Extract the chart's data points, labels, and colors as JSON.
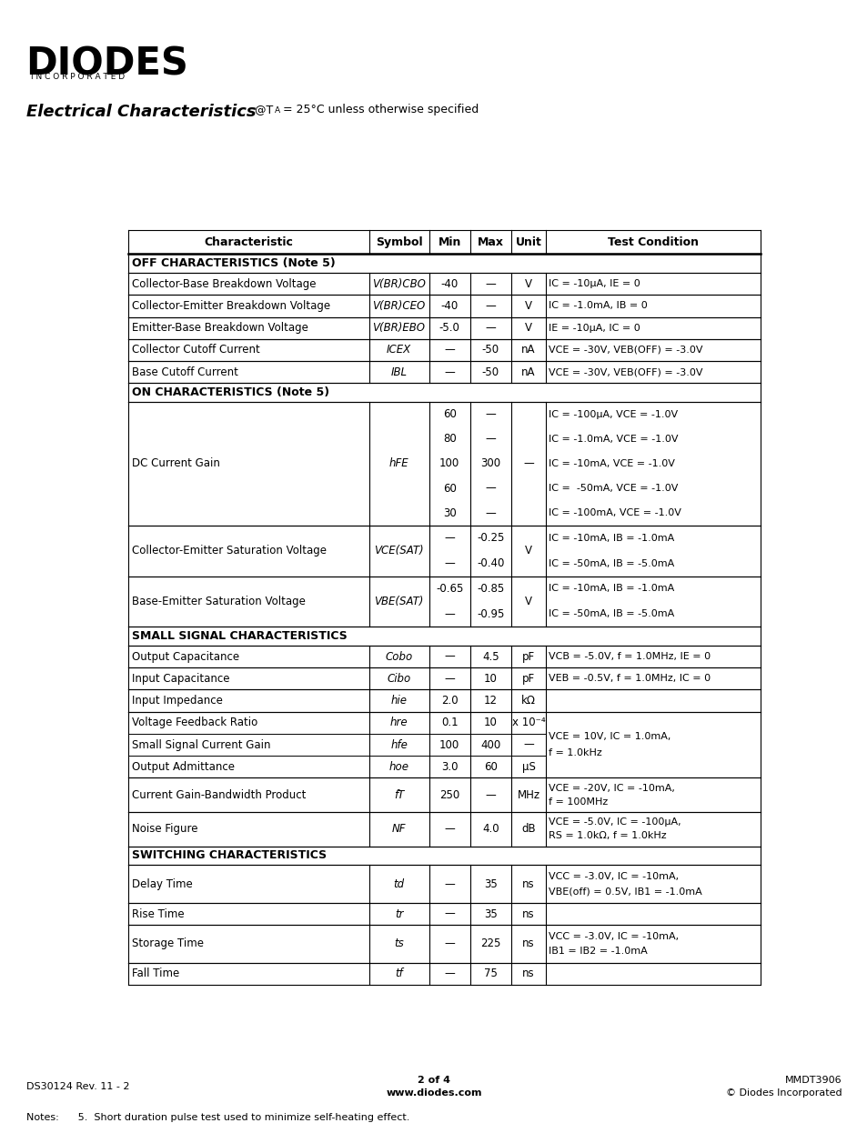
{
  "title": "Electrical Characteristics",
  "title_subtitle": "@TA = 25°C unless otherwise specified",
  "page_footer_left": "DS30124 Rev. 11 - 2",
  "page_footer_center_top": "2 of 4",
  "page_footer_center_bot": "www.diodes.com",
  "page_footer_right_top": "MMDT3906",
  "page_footer_right_bot": "© Diodes Incorporated",
  "notes": "Notes:      5.  Short duration pulse test used to minimize self-heating effect.",
  "col_headers": [
    "Characteristic",
    "Symbol",
    "Min",
    "Max",
    "Unit",
    "Test Condition"
  ],
  "sections": [
    {
      "type": "section_header",
      "text": "OFF CHARACTERISTICS (Note 5)"
    },
    {
      "type": "row",
      "char": "Collector-Base Breakdown Voltage",
      "symbol": "V(BR)CBO",
      "min": "-40",
      "max": "—",
      "unit": "V",
      "condition": "IC = -10μA, IE = 0",
      "cond_lines": 1
    },
    {
      "type": "row",
      "char": "Collector-Emitter Breakdown Voltage",
      "symbol": "V(BR)CEO",
      "min": "-40",
      "max": "—",
      "unit": "V",
      "condition": "IC = -1.0mA, IB = 0",
      "cond_lines": 1
    },
    {
      "type": "row",
      "char": "Emitter-Base Breakdown Voltage",
      "symbol": "V(BR)EBO",
      "min": "-5.0",
      "max": "—",
      "unit": "V",
      "condition": "IE = -10μA, IC = 0",
      "cond_lines": 1
    },
    {
      "type": "row",
      "char": "Collector Cutoff Current",
      "symbol": "ICEX",
      "min": "—",
      "max": "-50",
      "unit": "nA",
      "condition": "VCE = -30V, VEB(OFF) = -3.0V",
      "cond_lines": 1
    },
    {
      "type": "row",
      "char": "Base Cutoff Current",
      "symbol": "IBL",
      "min": "—",
      "max": "-50",
      "unit": "nA",
      "condition": "VCE = -30V, VEB(OFF) = -3.0V",
      "cond_lines": 1
    },
    {
      "type": "section_header",
      "text": "ON CHARACTERISTICS (Note 5)"
    },
    {
      "type": "multirow",
      "char": "DC Current Gain",
      "symbol": "hFE",
      "min_values": [
        "60",
        "80",
        "100",
        "60",
        "30"
      ],
      "max_values": [
        "—",
        "—",
        "300",
        "—",
        "—"
      ],
      "unit": "—",
      "conditions": [
        "IC = -100μA, VCE = -1.0V",
        "IC = -1.0mA, VCE = -1.0V",
        "IC = -10mA, VCE = -1.0V",
        "IC =  -50mA, VCE = -1.0V",
        "IC = -100mA, VCE = -1.0V"
      ]
    },
    {
      "type": "multirow",
      "char": "Collector-Emitter Saturation Voltage",
      "symbol": "VCE(SAT)",
      "min_values": [
        "—",
        "—"
      ],
      "max_values": [
        "-0.25",
        "-0.40"
      ],
      "unit": "V",
      "conditions": [
        "IC = -10mA, IB = -1.0mA",
        "IC = -50mA, IB = -5.0mA"
      ]
    },
    {
      "type": "multirow",
      "char": "Base-Emitter Saturation Voltage",
      "symbol": "VBE(SAT)",
      "min_values": [
        "-0.65",
        "—"
      ],
      "max_values": [
        "-0.85",
        "-0.95"
      ],
      "unit": "V",
      "conditions": [
        "IC = -10mA, IB = -1.0mA",
        "IC = -50mA, IB = -5.0mA"
      ]
    },
    {
      "type": "section_header",
      "text": "SMALL SIGNAL CHARACTERISTICS"
    },
    {
      "type": "row",
      "char": "Output Capacitance",
      "symbol": "Cobo",
      "min": "—",
      "max": "4.5",
      "unit": "pF",
      "condition": "VCB = -5.0V, f = 1.0MHz, IE = 0",
      "cond_lines": 1
    },
    {
      "type": "row",
      "char": "Input Capacitance",
      "symbol": "Cibo",
      "min": "—",
      "max": "10",
      "unit": "pF",
      "condition": "VEB = -0.5V, f = 1.0MHz, IC = 0",
      "cond_lines": 1
    },
    {
      "type": "row",
      "char": "Input Impedance",
      "symbol": "hie",
      "min": "2.0",
      "max": "12",
      "unit": "kΩ",
      "condition": "",
      "cond_lines": 1
    },
    {
      "type": "grouped_row",
      "chars": [
        "Voltage Feedback Ratio",
        "Small Signal Current Gain",
        "Output Admittance"
      ],
      "symbols": [
        "hre",
        "hfe",
        "hoe"
      ],
      "mins": [
        "0.1",
        "100",
        "3.0"
      ],
      "maxs": [
        "10",
        "400",
        "60"
      ],
      "units": [
        "x 10⁻⁴",
        "—",
        "μS"
      ],
      "condition_lines": [
        "VCE = 10V, IC = 1.0mA,",
        "f = 1.0kHz"
      ]
    },
    {
      "type": "multirow",
      "char": "Current Gain-Bandwidth Product",
      "symbol": "fT",
      "min_values": [
        "250"
      ],
      "max_values": [
        "—"
      ],
      "unit": "MHz",
      "conditions": [
        "VCE = -20V, IC = -10mA,\nf = 100MHz"
      ]
    },
    {
      "type": "multirow",
      "char": "Noise Figure",
      "symbol": "NF",
      "min_values": [
        "—"
      ],
      "max_values": [
        "4.0"
      ],
      "unit": "dB",
      "conditions": [
        "VCE = -5.0V, IC = -100μA,\nRS = 1.0kΩ, f = 1.0kHz"
      ]
    },
    {
      "type": "section_header",
      "text": "SWITCHING CHARACTERISTICS"
    },
    {
      "type": "row",
      "char": "Delay Time",
      "symbol": "td",
      "min": "—",
      "max": "35",
      "unit": "ns",
      "condition": "VCC = -3.0V, IC = -10mA,\nVBE(off) = 0.5V, IB1 = -1.0mA",
      "cond_lines": 2
    },
    {
      "type": "row",
      "char": "Rise Time",
      "symbol": "tr",
      "min": "—",
      "max": "35",
      "unit": "ns",
      "condition": "",
      "cond_lines": 1
    },
    {
      "type": "row",
      "char": "Storage Time",
      "symbol": "ts",
      "min": "—",
      "max": "225",
      "unit": "ns",
      "condition": "VCC = -3.0V, IC = -10mA,\nIB1 = IB2 = -1.0mA",
      "cond_lines": 2
    },
    {
      "type": "row",
      "char": "Fall Time",
      "symbol": "tf",
      "min": "—",
      "max": "75",
      "unit": "ns",
      "condition": "",
      "cond_lines": 1
    }
  ]
}
